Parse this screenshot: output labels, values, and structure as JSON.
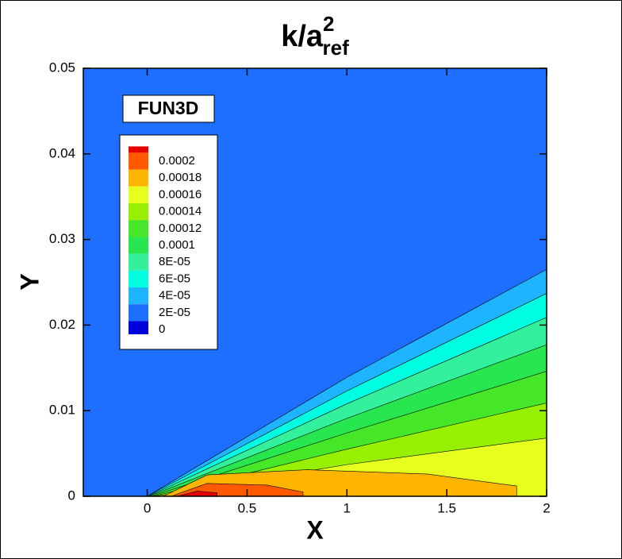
{
  "chart_data": {
    "type": "contour",
    "title": {
      "main": "k/a",
      "superscript": "2",
      "subscript": "ref"
    },
    "annotation": "FUN3D",
    "x_label": "X",
    "y_label": "Y",
    "xlim": [
      -0.32,
      2
    ],
    "xticks": [
      0,
      0.5,
      1,
      1.5,
      2
    ],
    "ylim": [
      0,
      0.05
    ],
    "yticks": [
      0,
      0.01,
      0.02,
      0.03,
      0.04,
      0.05
    ],
    "max_color": "#e60000",
    "levels": [
      {
        "value": 0.0002,
        "color": "#ff5a00",
        "x": [
          0.15,
          0.25,
          0.35,
          0.35
        ],
        "y": [
          0,
          0.0006,
          0.0004,
          0
        ]
      },
      {
        "value": 0.00018,
        "color": "#ffb400",
        "x": [
          0.12,
          0.3,
          0.6,
          0.78,
          0.78
        ],
        "y": [
          0,
          0.0015,
          0.0013,
          0.0005,
          0
        ]
      },
      {
        "value": 0.00016,
        "color": "#e6ff1e",
        "x": [
          0.08,
          0.3,
          0.8,
          1.4,
          1.85,
          1.85
        ],
        "y": [
          0,
          0.0025,
          0.0031,
          0.0026,
          0.0012,
          0
        ]
      },
      {
        "value": 0.00014,
        "color": "#96f000",
        "x": [
          0.04,
          1,
          2,
          2
        ],
        "y": [
          0,
          0.0037,
          0.0068,
          0
        ]
      },
      {
        "value": 0.00012,
        "color": "#46e628",
        "x": [
          0.03,
          1,
          2,
          2
        ],
        "y": [
          0,
          0.0055,
          0.0109,
          0
        ]
      },
      {
        "value": 0.0001,
        "color": "#28e650",
        "x": [
          0.02,
          1,
          2,
          2
        ],
        "y": [
          0,
          0.0074,
          0.0146,
          0
        ]
      },
      {
        "value": 8e-05,
        "label": "8E-05",
        "color": "#32f09b",
        "x": [
          0.01,
          1,
          2,
          2
        ],
        "y": [
          0,
          0.0091,
          0.0177,
          0
        ]
      },
      {
        "value": 6e-05,
        "label": "6E-05",
        "color": "#00ffe1",
        "x": [
          0.005,
          1,
          2,
          2
        ],
        "y": [
          0,
          0.0108,
          0.0209,
          0
        ]
      },
      {
        "value": 4e-05,
        "label": "4E-05",
        "color": "#1eb4ff",
        "x": [
          0,
          1,
          2,
          2
        ],
        "y": [
          0,
          0.0123,
          0.0237,
          0
        ]
      },
      {
        "value": 2e-05,
        "label": "2E-05",
        "color": "#1e6eff",
        "x": [
          0,
          1,
          2,
          2
        ],
        "y": [
          0,
          0.0139,
          0.0265,
          0
        ]
      },
      {
        "value": 0,
        "color": "#0000dc",
        "x": [
          -0.32,
          -0.32,
          2,
          2
        ],
        "y": [
          0,
          0.05,
          0.05,
          0
        ]
      }
    ]
  }
}
